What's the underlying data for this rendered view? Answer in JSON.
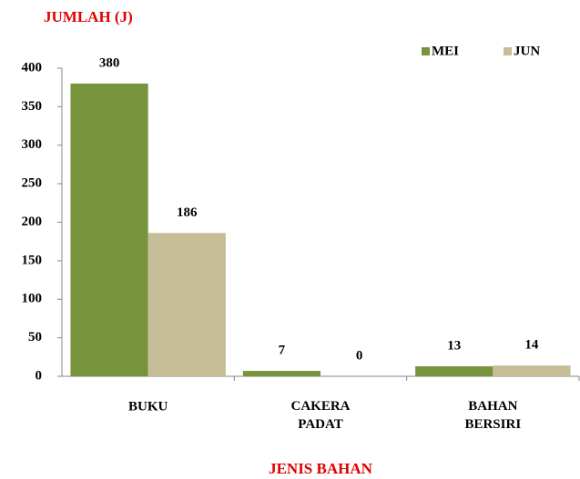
{
  "chart_data": {
    "type": "bar",
    "y_label": "JUMLAH (J)",
    "x_label": "JENIS BAHAN",
    "categories": [
      "BUKU",
      "CAKERA PADAT",
      "BAHAN BERSIRI"
    ],
    "series": [
      {
        "name": "MEI",
        "color": "#77933c",
        "values": [
          380,
          7,
          13
        ]
      },
      {
        "name": "JUN",
        "color": "#c4bd97",
        "values": [
          186,
          0,
          14
        ]
      }
    ],
    "ylim": [
      0,
      400
    ],
    "yticks": [
      0,
      50,
      100,
      150,
      200,
      250,
      300,
      350,
      400
    ],
    "grid": false,
    "legend": "top-right"
  }
}
